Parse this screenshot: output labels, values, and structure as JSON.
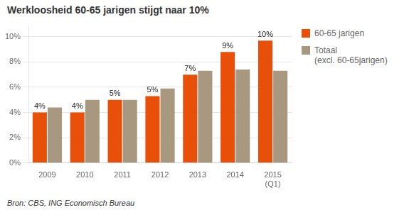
{
  "chart_data": {
    "type": "bar",
    "title": "Werkloosheid 60-65 jarigen stijgt naar 10%",
    "categories": [
      "2009",
      "2010",
      "2011",
      "2012",
      "2013",
      "2014",
      "2015\n(Q1)"
    ],
    "series": [
      {
        "name": "60-65 jarigen",
        "color": "#E8500A",
        "values": [
          4,
          4,
          5,
          5.3,
          7,
          8.8,
          9.7
        ],
        "value_labels": [
          "4%",
          "4%",
          "5%",
          "5%",
          "7%",
          "9%",
          "10%"
        ]
      },
      {
        "name": "Totaal\n(excl. 60-65jarigen)",
        "color": "#A89880",
        "values": [
          4.4,
          5.0,
          5.0,
          5.9,
          7.3,
          7.4,
          7.3
        ]
      }
    ],
    "ylim": [
      0,
      10.8
    ],
    "yticks": [
      {
        "value": 0,
        "label": "0%"
      },
      {
        "value": 2,
        "label": "2%"
      },
      {
        "value": 4,
        "label": "4%"
      },
      {
        "value": 6,
        "label": "6%"
      },
      {
        "value": 8,
        "label": "8%"
      },
      {
        "value": 10,
        "label": "10%"
      }
    ],
    "grid": true,
    "legend": "right",
    "data_labels": true,
    "annotations": [
      "Bron: CBS, ING Economisch Bureau"
    ]
  }
}
